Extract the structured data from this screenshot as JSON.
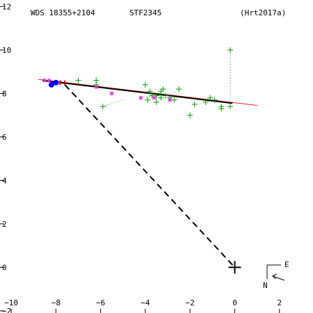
{
  "chart_data": {
    "type": "scatter",
    "header": {
      "wds_id": "WDS 18355+2104",
      "discoverer": "STF2345",
      "reference": "(Hrt2017a)"
    },
    "xlim": [
      -10.5,
      3.5
    ],
    "ylim": [
      -2.1,
      12.3
    ],
    "x_ticks": [
      -10,
      -8,
      -6,
      -4,
      -2,
      0,
      2
    ],
    "y_ticks": [
      -2,
      0,
      2,
      4,
      6,
      8,
      10,
      12
    ],
    "x_tick_labels": [
      "−10",
      "−8",
      "−6",
      "−4",
      "−2",
      "0",
      "2"
    ],
    "y_tick_labels": [
      "−2",
      "0",
      "2",
      "4",
      "6",
      "8",
      "10",
      "12"
    ],
    "orientation": {
      "north": "N",
      "east": "E"
    },
    "primary": {
      "x": 0,
      "y": 0
    },
    "series": [
      {
        "marker": "plus",
        "color": "#009900",
        "points": [
          [
            -7.0,
            8.6
          ],
          [
            -6.2,
            8.6
          ],
          [
            -6.2,
            8.4
          ],
          [
            -5.9,
            7.4
          ],
          [
            -4.0,
            8.4
          ],
          [
            -3.8,
            8.1
          ],
          [
            -3.7,
            7.9
          ],
          [
            -3.9,
            7.7
          ],
          [
            -3.5,
            7.9
          ],
          [
            -3.5,
            7.6
          ],
          [
            -3.3,
            8.1
          ],
          [
            -3.3,
            7.8
          ],
          [
            -3.2,
            8.2
          ],
          [
            -3.1,
            7.9
          ],
          [
            -2.9,
            7.8
          ],
          [
            -2.7,
            7.7
          ],
          [
            -2.5,
            8.2
          ],
          [
            -2.0,
            7.0
          ],
          [
            -1.8,
            7.5
          ],
          [
            -1.3,
            7.6
          ],
          [
            -1.1,
            7.8
          ],
          [
            -0.9,
            7.7
          ],
          [
            -0.6,
            7.4
          ],
          [
            -0.6,
            7.3
          ],
          [
            -0.2,
            7.4
          ],
          [
            -0.2,
            10.0
          ]
        ]
      },
      {
        "marker": "asterisk",
        "color": "#cc33cc",
        "points": [
          [
            -8.5,
            8.6
          ],
          [
            -8.3,
            8.6
          ],
          [
            -7.9,
            8.5
          ],
          [
            -6.2,
            8.3
          ],
          [
            -5.5,
            8.0
          ],
          [
            -4.2,
            7.8
          ],
          [
            -3.6,
            7.8
          ],
          [
            -2.9,
            7.7
          ]
        ]
      },
      {
        "marker": "dot",
        "color": "#0000ff",
        "points": [
          [
            -8.2,
            8.4
          ],
          [
            -8.0,
            8.5
          ]
        ]
      },
      {
        "marker": "bar",
        "color": "#cc0000",
        "points": [
          [
            -7.8,
            8.5
          ],
          [
            -7.6,
            8.5
          ]
        ]
      }
    ],
    "orbit_line_red": [
      [
        -8.8,
        8.65
      ],
      [
        1.0,
        7.45
      ]
    ],
    "orbit_line_black": [
      [
        -8.6,
        8.6
      ],
      [
        -0.1,
        7.55
      ]
    ],
    "dashed_line": [
      [
        -7.6,
        8.4
      ],
      [
        0,
        0
      ]
    ],
    "residual_segments": [
      [
        [
          -5.9,
          7.4
        ],
        [
          -5.0,
          7.7
        ]
      ],
      [
        [
          -4.2,
          7.8
        ],
        [
          -3.3,
          7.95
        ]
      ],
      [
        [
          -0.2,
          10.0
        ],
        [
          -0.2,
          7.55
        ]
      ]
    ]
  }
}
